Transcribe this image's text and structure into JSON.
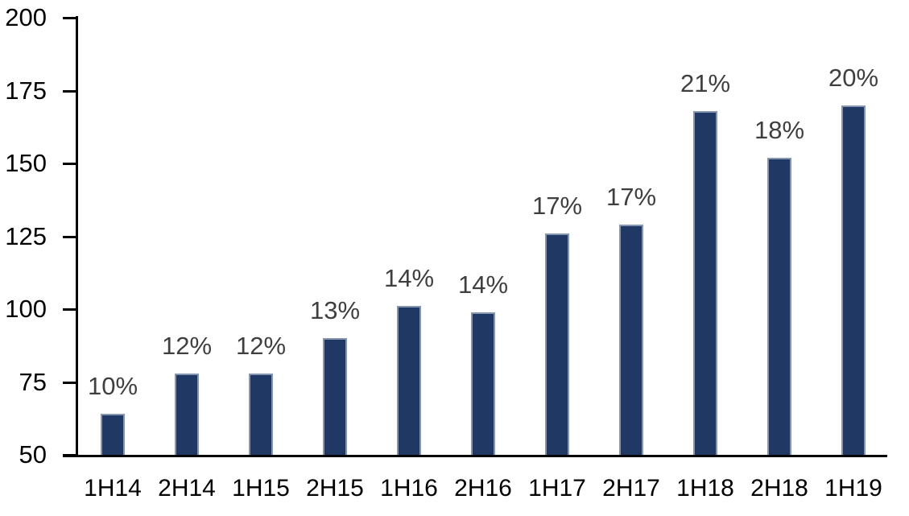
{
  "chart_data": {
    "type": "bar",
    "title": "",
    "xlabel": "",
    "ylabel": "",
    "categories": [
      "1H14",
      "2H14",
      "1H15",
      "2H15",
      "1H16",
      "2H16",
      "1H17",
      "2H17",
      "1H18",
      "2H18",
      "1H19"
    ],
    "values": [
      64,
      78,
      78,
      90,
      101,
      99,
      126,
      129,
      168,
      152,
      170
    ],
    "data_labels": [
      "10%",
      "12%",
      "12%",
      "13%",
      "14%",
      "14%",
      "17%",
      "17%",
      "21%",
      "18%",
      "20%"
    ],
    "ylim": [
      50,
      200
    ],
    "yticks": [
      50,
      75,
      100,
      125,
      150,
      175,
      200
    ],
    "grid": false,
    "legend": false,
    "colors": {
      "bar_fill": "#1F3864",
      "bar_border": "#8796B0",
      "data_label": "#3F3F3F",
      "axis_text": "#000000",
      "axis_line": "#000000",
      "background": "#FFFFFF"
    }
  }
}
